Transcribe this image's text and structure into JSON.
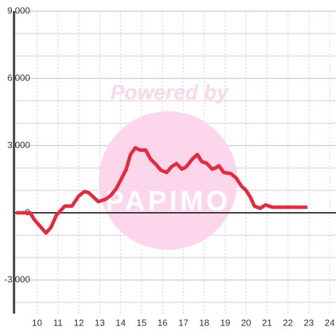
{
  "chart_data": {
    "type": "line",
    "watermark": {
      "title": "Powered by",
      "logo": "PAPIMO"
    },
    "x": [
      9.0,
      9.67,
      9.87,
      10.1,
      10.43,
      10.67,
      10.93,
      11.33,
      11.67,
      12.0,
      12.27,
      12.47,
      12.7,
      12.93,
      13.27,
      13.5,
      13.77,
      14.0,
      14.27,
      14.47,
      14.7,
      14.93,
      15.2,
      15.43,
      15.7,
      15.93,
      16.2,
      16.43,
      16.67,
      16.93,
      17.13,
      17.43,
      17.67,
      17.87,
      18.13,
      18.37,
      18.53,
      18.7,
      18.93,
      19.27,
      19.53,
      19.77,
      20.0,
      20.2,
      20.4,
      20.67,
      20.93,
      21.27,
      22.93
    ],
    "series": [
      {
        "color": "#e8283c",
        "values": [
          0,
          0,
          -300,
          -550,
          -900,
          -650,
          -100,
          300,
          300,
          750,
          950,
          900,
          700,
          500,
          600,
          750,
          1050,
          1450,
          1950,
          2600,
          2900,
          2800,
          2800,
          2400,
          2150,
          1900,
          1800,
          2050,
          2200,
          1950,
          2050,
          2400,
          2600,
          2300,
          2200,
          1950,
          2000,
          2100,
          1800,
          1750,
          1550,
          1200,
          1000,
          700,
          300,
          200,
          350,
          250,
          250
        ]
      }
    ],
    "xlim": [
      8.9,
      24.3
    ],
    "ylim": [
      -4500,
      9000
    ],
    "xticks": [
      10,
      11,
      12,
      13,
      14,
      15,
      16,
      17,
      18,
      19,
      20,
      21,
      22,
      23,
      24
    ],
    "yticks": [
      {
        "value": -3000,
        "label": "-3,000"
      },
      0,
      {
        "value": 3000,
        "label": "3,000"
      },
      {
        "value": 6000,
        "label": "6,000"
      },
      {
        "value": 9000,
        "label": "9,000"
      }
    ],
    "yminor": [
      -4000,
      -2000,
      -1000,
      1000,
      2000,
      4000,
      5000,
      7000,
      8000
    ],
    "grid": true
  }
}
